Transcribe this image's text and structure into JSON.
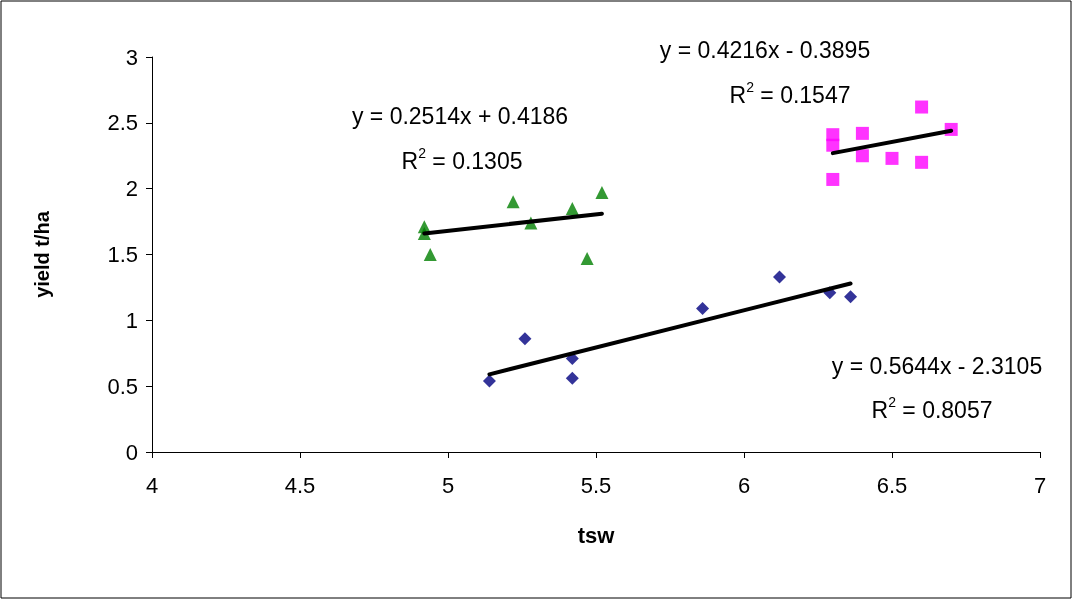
{
  "chart_data": {
    "type": "scatter",
    "xlabel": "tsw",
    "ylabel": "yield t/ha",
    "xlim": [
      4,
      7
    ],
    "xticks": [
      4,
      4.5,
      5,
      5.5,
      6,
      6.5,
      7
    ],
    "ylim": [
      0,
      3
    ],
    "yticks": [
      0,
      0.5,
      1,
      1.5,
      2,
      2.5,
      3
    ],
    "grid": false,
    "series": [
      {
        "marker": "diamond",
        "color": "#000080",
        "x": [
          5.14,
          5.26,
          5.42,
          5.42,
          5.86,
          6.12,
          6.29,
          6.36
        ],
        "values": [
          0.54,
          0.86,
          0.71,
          0.56,
          1.09,
          1.33,
          1.21,
          1.18
        ]
      },
      {
        "marker": "triangle",
        "color": "#008000",
        "x": [
          4.92,
          4.92,
          4.94,
          5.22,
          5.28,
          5.42,
          5.47,
          5.52
        ],
        "values": [
          1.71,
          1.66,
          1.5,
          1.9,
          1.74,
          1.85,
          1.47,
          1.97
        ]
      },
      {
        "marker": "square",
        "color": "#ff00ff",
        "x": [
          6.3,
          6.3,
          6.3,
          6.4,
          6.4,
          6.5,
          6.6,
          6.6,
          6.7
        ],
        "values": [
          2.41,
          2.33,
          2.07,
          2.42,
          2.25,
          2.23,
          2.62,
          2.2,
          2.45
        ]
      },
      {
        "type": "line",
        "marker": "none",
        "color": "#000000",
        "x": [
          5.14,
          6.36
        ],
        "values": [
          0.59,
          1.28
        ]
      },
      {
        "type": "line",
        "marker": "none",
        "color": "#000000",
        "x": [
          4.92,
          5.52
        ],
        "values": [
          1.66,
          1.81
        ]
      },
      {
        "type": "line",
        "marker": "none",
        "color": "#000000",
        "x": [
          6.3,
          6.7
        ],
        "values": [
          2.27,
          2.44
        ]
      }
    ],
    "annotations": [
      "y = 0.5644x - 2.3105",
      "R$^{2}$ = 0.8057",
      "y = 0.2514x + 0.4186",
      "R$^{2}$ = 0.1305",
      "y = 0.4216x - 0.3895",
      "R$^{2}$ = 0.1547"
    ]
  }
}
